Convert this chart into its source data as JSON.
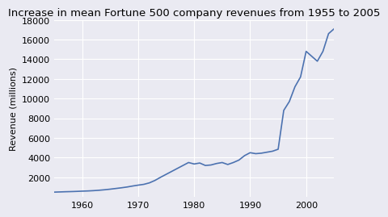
{
  "title": "Increase in mean Fortune 500 company revenues from 1955 to 2005",
  "xlabel": "",
  "ylabel": "Revenue (millions)",
  "line_color": "#4c72b0",
  "background_color": "#eaeaf2",
  "grid_color": "#ffffff",
  "years": [
    1955,
    1956,
    1957,
    1958,
    1959,
    1960,
    1961,
    1962,
    1963,
    1964,
    1965,
    1966,
    1967,
    1968,
    1969,
    1970,
    1971,
    1972,
    1973,
    1974,
    1975,
    1976,
    1977,
    1978,
    1979,
    1980,
    1981,
    1982,
    1983,
    1984,
    1985,
    1986,
    1987,
    1988,
    1989,
    1990,
    1991,
    1992,
    1993,
    1994,
    1995,
    1996,
    1997,
    1998,
    1999,
    2000,
    2001,
    2002,
    2003,
    2004,
    2005
  ],
  "revenues": [
    490,
    510,
    530,
    545,
    565,
    590,
    610,
    640,
    680,
    730,
    790,
    860,
    930,
    1010,
    1110,
    1200,
    1280,
    1430,
    1680,
    2000,
    2300,
    2600,
    2900,
    3200,
    3500,
    3350,
    3450,
    3200,
    3250,
    3400,
    3500,
    3300,
    3500,
    3750,
    4200,
    4500,
    4400,
    4450,
    4550,
    4650,
    4850,
    8800,
    9700,
    11200,
    12200,
    14800,
    14300,
    13800,
    14800,
    16600,
    17100
  ],
  "xlim": [
    1955,
    2005
  ],
  "ylim": [
    0,
    18000
  ],
  "yticks": [
    2000,
    4000,
    6000,
    8000,
    10000,
    12000,
    14000,
    16000,
    18000
  ],
  "xticks": [
    1960,
    1970,
    1980,
    1990,
    2000
  ],
  "title_fontsize": 9.5,
  "label_fontsize": 8,
  "tick_fontsize": 8
}
